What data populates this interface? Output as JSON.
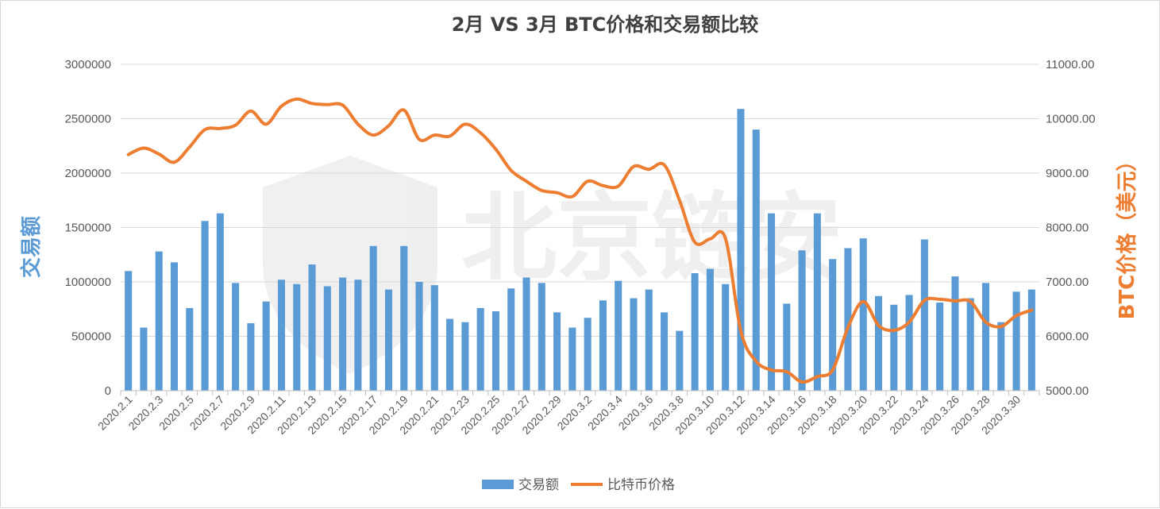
{
  "chart_data": {
    "type": "bar",
    "title": "2月 VS 3月 BTC价格和交易额比较",
    "ylabel": "交易额",
    "y2label": "BTC价格（美元）",
    "ylim": [
      0,
      3000000
    ],
    "y2lim": [
      5000,
      11000
    ],
    "yticks": [
      "0",
      "500000",
      "1000000",
      "1500000",
      "2000000",
      "2500000",
      "3000000"
    ],
    "y2ticks": [
      "5000.00",
      "6000.00",
      "7000.00",
      "8000.00",
      "9000.00",
      "10000.00",
      "11000.00"
    ],
    "grid": true,
    "legend_position": "bottom",
    "categories": [
      "2020.2.1",
      "2020.2.2",
      "2020.2.3",
      "2020.2.4",
      "2020.2.5",
      "2020.2.6",
      "2020.2.7",
      "2020.2.8",
      "2020.2.9",
      "2020.2.10",
      "2020.2.11",
      "2020.2.12",
      "2020.2.13",
      "2020.2.14",
      "2020.2.15",
      "2020.2.16",
      "2020.2.17",
      "2020.2.18",
      "2020.2.19",
      "2020.2.20",
      "2020.2.21",
      "2020.2.22",
      "2020.2.23",
      "2020.2.24",
      "2020.2.25",
      "2020.2.26",
      "2020.2.27",
      "2020.2.28",
      "2020.2.29",
      "2020.3.1",
      "2020.3.2",
      "2020.3.3",
      "2020.3.4",
      "2020.3.5",
      "2020.3.6",
      "2020.3.7",
      "2020.3.8",
      "2020.3.9",
      "2020.3.10",
      "2020.3.11",
      "2020.3.12",
      "2020.3.13",
      "2020.3.14",
      "2020.3.15",
      "2020.3.16",
      "2020.3.17",
      "2020.3.18",
      "2020.3.19",
      "2020.3.20",
      "2020.3.21",
      "2020.3.22",
      "2020.3.23",
      "2020.3.24",
      "2020.3.25",
      "2020.3.26",
      "2020.3.27",
      "2020.3.28",
      "2020.3.29",
      "2020.3.30",
      "2020.3.31"
    ],
    "x_tick_labels": [
      "2020.2.1",
      "2020.2.3",
      "2020.2.5",
      "2020.2.7",
      "2020.2.9",
      "2020.2.11",
      "2020.2.13",
      "2020.2.15",
      "2020.2.17",
      "2020.2.19",
      "2020.2.21",
      "2020.2.23",
      "2020.2.25",
      "2020.2.27",
      "2020.2.29",
      "2020.3.2",
      "2020.3.4",
      "2020.3.6",
      "2020.3.8",
      "2020.3.10",
      "2020.3.12",
      "2020.3.14",
      "2020.3.16",
      "2020.3.18",
      "2020.3.20",
      "2020.3.22",
      "2020.3.24",
      "2020.3.26",
      "2020.3.28",
      "2020.3.30"
    ],
    "series": [
      {
        "name": "交易额",
        "type": "bar",
        "axis": "left",
        "color": "#5b9bd5",
        "values": [
          1100000,
          580000,
          1280000,
          1180000,
          760000,
          1560000,
          1630000,
          990000,
          620000,
          820000,
          1020000,
          980000,
          1160000,
          960000,
          1040000,
          1020000,
          1330000,
          930000,
          1330000,
          1000000,
          970000,
          660000,
          630000,
          760000,
          730000,
          940000,
          1040000,
          990000,
          720000,
          580000,
          670000,
          830000,
          1010000,
          850000,
          930000,
          720000,
          550000,
          1080000,
          1120000,
          980000,
          2590000,
          2400000,
          1630000,
          800000,
          1290000,
          1630000,
          1210000,
          1310000,
          1400000,
          870000,
          790000,
          880000,
          1390000,
          810000,
          1050000,
          850000,
          990000,
          630000,
          910000,
          930000
        ]
      },
      {
        "name": "比特币价格",
        "type": "line",
        "axis": "right",
        "color": "#ed7d31",
        "values": [
          9340,
          9460,
          9350,
          9200,
          9480,
          9800,
          9820,
          9880,
          10140,
          9900,
          10230,
          10360,
          10280,
          10260,
          10250,
          9900,
          9700,
          9870,
          10160,
          9620,
          9700,
          9680,
          9900,
          9740,
          9440,
          9050,
          8850,
          8680,
          8640,
          8570,
          8850,
          8770,
          8760,
          9120,
          9070,
          9150,
          8500,
          7730,
          7790,
          7800,
          6100,
          5540,
          5380,
          5350,
          5160,
          5260,
          5380,
          6160,
          6640,
          6200,
          6110,
          6260,
          6660,
          6680,
          6650,
          6640,
          6260,
          6180,
          6380,
          6480
        ]
      }
    ]
  },
  "watermark": "北京链安",
  "colors": {
    "bar": "#5b9bd5",
    "line": "#ed7d31",
    "left_axis_label": "#5b9bd5",
    "right_axis_label": "#ed7d31"
  }
}
